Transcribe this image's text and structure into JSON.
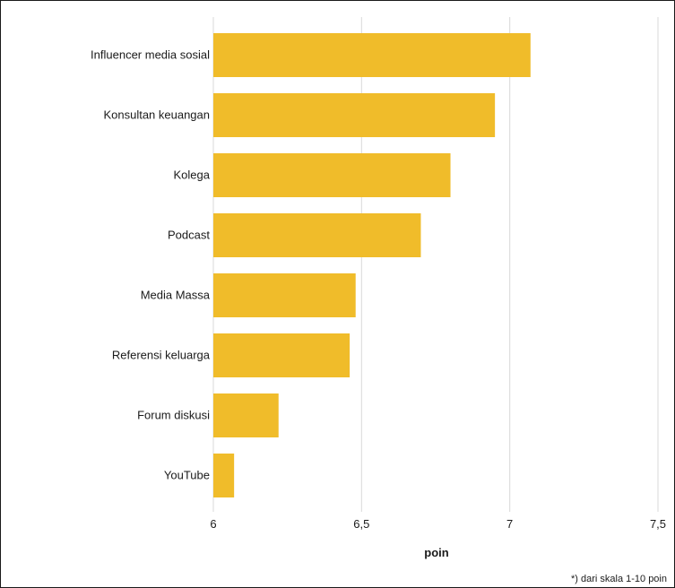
{
  "chart_data": {
    "type": "bar",
    "orientation": "horizontal",
    "categories": [
      "Influencer media sosial",
      "Konsultan keuangan",
      "Kolega",
      "Podcast",
      "Media Massa",
      "Referensi keluarga",
      "Forum diskusi",
      "YouTube"
    ],
    "values": [
      7.07,
      6.95,
      6.8,
      6.7,
      6.48,
      6.46,
      6.22,
      6.07
    ],
    "xlim": [
      6,
      7.5
    ],
    "xticks": [
      6,
      6.5,
      7,
      7.5
    ],
    "xtick_labels": [
      "6",
      "6,5",
      "7",
      "7,5"
    ],
    "xlabel": "poin",
    "ylabel": "",
    "title": "",
    "grid": "vertical",
    "bar_color": "#f0bc2a",
    "grid_color": "#d9d9d9"
  },
  "footnote": "*) dari skala 1-10 poin"
}
